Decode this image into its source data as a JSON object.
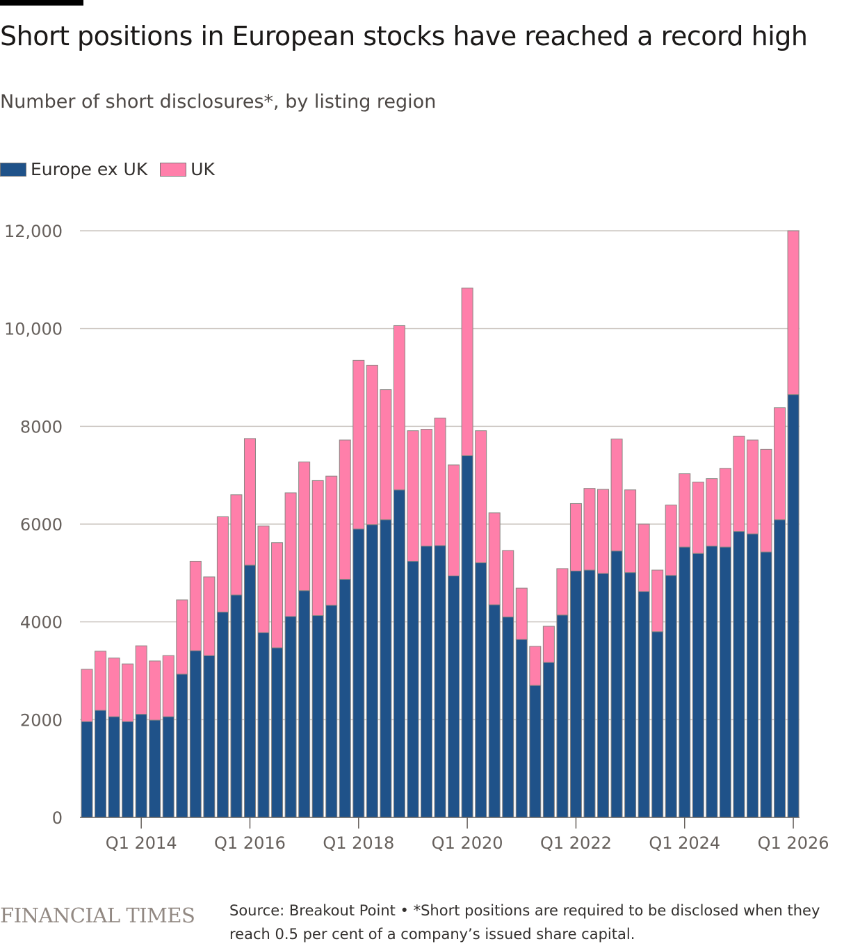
{
  "chart_data": {
    "type": "bar",
    "stacked": true,
    "title": "Short positions in European stocks have reached a record high",
    "subtitle": "Number of short disclosures*, by listing region",
    "xlabel": "",
    "ylabel": "",
    "ylim": [
      0,
      12000
    ],
    "yticks": [
      0,
      2000,
      4000,
      6000,
      8000,
      10000,
      12000
    ],
    "ytick_labels": [
      "0",
      "2000",
      "4000",
      "6000",
      "8000",
      "10,000",
      "12,000"
    ],
    "xtick_labels": [
      "Q1 2014",
      "Q1 2016",
      "Q1 2018",
      "Q1 2020",
      "Q1 2022",
      "Q1 2024",
      "Q1 2026"
    ],
    "xtick_index": [
      4,
      12,
      20,
      28,
      36,
      44,
      52
    ],
    "grid": true,
    "legend_position": "top-left",
    "categories": [
      "Q1 2013",
      "Q2 2013",
      "Q3 2013",
      "Q4 2013",
      "Q1 2014",
      "Q2 2014",
      "Q3 2014",
      "Q4 2014",
      "Q1 2015",
      "Q2 2015",
      "Q3 2015",
      "Q4 2015",
      "Q1 2016",
      "Q2 2016",
      "Q3 2016",
      "Q4 2016",
      "Q1 2017",
      "Q2 2017",
      "Q3 2017",
      "Q4 2017",
      "Q1 2018",
      "Q2 2018",
      "Q3 2018",
      "Q4 2018",
      "Q1 2019",
      "Q2 2019",
      "Q3 2019",
      "Q4 2019",
      "Q1 2020",
      "Q2 2020",
      "Q3 2020",
      "Q4 2020",
      "Q1 2021",
      "Q2 2021",
      "Q3 2021",
      "Q4 2021",
      "Q1 2022",
      "Q2 2022",
      "Q3 2022",
      "Q4 2022",
      "Q1 2023",
      "Q2 2023",
      "Q3 2023",
      "Q4 2023",
      "Q1 2024",
      "Q2 2024",
      "Q3 2024",
      "Q4 2024",
      "Q1 2025",
      "Q2 2025",
      "Q3 2025",
      "Q4 2025",
      "Q1 2026"
    ],
    "series": [
      {
        "name": "Europe ex UK",
        "color": "#1f5289",
        "values": [
          1960,
          2190,
          2060,
          1960,
          2110,
          1990,
          2060,
          2930,
          3410,
          3310,
          4200,
          4550,
          5160,
          3780,
          3470,
          4110,
          4640,
          4130,
          4340,
          4870,
          5900,
          5990,
          6090,
          6700,
          5240,
          5550,
          5560,
          4940,
          7400,
          5210,
          4350,
          4100,
          3640,
          2700,
          3170,
          4140,
          5040,
          5060,
          4990,
          5450,
          5010,
          4620,
          3800,
          4950,
          5530,
          5400,
          5550,
          5530,
          5850,
          5800,
          5430,
          6090,
          8650
        ]
      },
      {
        "name": "UK",
        "color": "#ff7faa",
        "values": [
          1070,
          1210,
          1200,
          1180,
          1400,
          1210,
          1250,
          1520,
          1830,
          1610,
          1950,
          2050,
          2590,
          2180,
          2150,
          2530,
          2630,
          2760,
          2640,
          2850,
          3450,
          3260,
          2660,
          3360,
          2670,
          2390,
          2610,
          2270,
          3430,
          2700,
          1880,
          1360,
          1050,
          800,
          740,
          950,
          1380,
          1670,
          1720,
          2290,
          1690,
          1380,
          1260,
          1440,
          1500,
          1460,
          1380,
          1610,
          1950,
          1920,
          2100,
          2290,
          3350
        ]
      }
    ]
  },
  "footer": {
    "logo": "FINANCIAL TIMES",
    "note": "Source: Breakout Point • *Short positions are required to be disclosed when they reach 0.5 per cent of a company’s issued share capital."
  }
}
